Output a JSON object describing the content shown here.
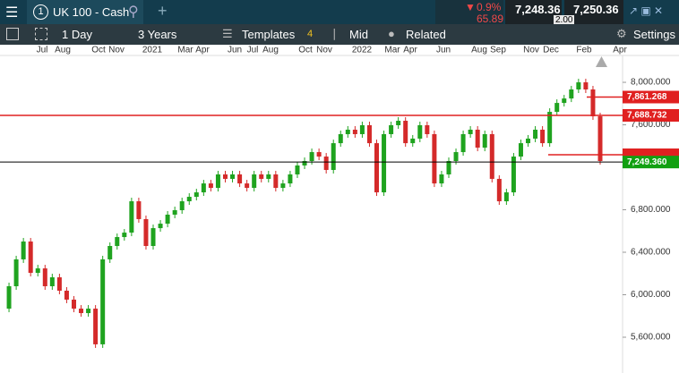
{
  "header": {
    "instrument_number": "1",
    "instrument": "UK 100 - Cash",
    "change_pct": "0.9%",
    "change": "65.89",
    "sell": "7,248.36",
    "buy": "7,250.36",
    "spread": "2.00"
  },
  "toolbar": {
    "interval": "1 Day",
    "range": "3 Years",
    "templates": "Templates",
    "templates_count": "4",
    "price_type": "Mid",
    "related": "Related",
    "settings": "Settings"
  },
  "chart_data": {
    "type": "candlestick",
    "x_labels": [
      "Jul",
      "Aug",
      "Oct",
      "Nov",
      "2021",
      "Mar",
      "Apr",
      "Jun",
      "Jul",
      "Aug",
      "Oct",
      "Nov",
      "2022",
      "Mar",
      "Apr",
      "Jun",
      "Aug",
      "Sep",
      "Nov",
      "Dec",
      "Feb",
      "Apr"
    ],
    "values": [
      5869,
      6080,
      6333,
      6501,
      6206,
      6248,
      6080,
      6164,
      6038,
      5954,
      5869,
      5827,
      5869,
      5533,
      6333,
      6459,
      6543,
      6585,
      6880,
      6712,
      6459,
      6627,
      6669,
      6754,
      6796,
      6880,
      6922,
      6964,
      7048,
      7006,
      7133,
      7091,
      7133,
      7048,
      7006,
      7133,
      7091,
      7133,
      7006,
      7048,
      7133,
      7217,
      7259,
      7343,
      7301,
      7175,
      7427,
      7512,
      7554,
      7512,
      7596,
      7427,
      6964,
      7512,
      7596,
      7638,
      7427,
      7470,
      7596,
      7512,
      7048,
      7133,
      7259,
      7343,
      7512,
      7554,
      7385,
      7512,
      7091,
      6880,
      6964,
      7301,
      7427,
      7470,
      7554,
      7427,
      7722,
      7806,
      7848,
      7933,
      8000,
      7933,
      7680,
      7259
    ],
    "up_color": "#1fa31f",
    "down_color": "#d42a2a",
    "ylim": [
      5263,
      8253
    ],
    "yticks": [
      {
        "value": 5600,
        "label": "5,600.000"
      },
      {
        "value": 6000,
        "label": "6,000.000"
      },
      {
        "value": 6400,
        "label": "6,400.000"
      },
      {
        "value": 6800,
        "label": "6,800.000"
      },
      {
        "value": 7600,
        "label": "7,600.000"
      },
      {
        "value": 8000,
        "label": "8,000.000"
      }
    ],
    "lines": [
      {
        "value": 7861.268,
        "label": "7,861.268",
        "color": "#e02020"
      },
      {
        "value": 7688.732,
        "label": "7,688.732",
        "color": "#e02020"
      },
      {
        "value": 7318,
        "color": "#e02020"
      },
      {
        "value": 7249.36,
        "label": "7,249.360",
        "color": "#000000",
        "label_color": "#12a012"
      }
    ]
  }
}
